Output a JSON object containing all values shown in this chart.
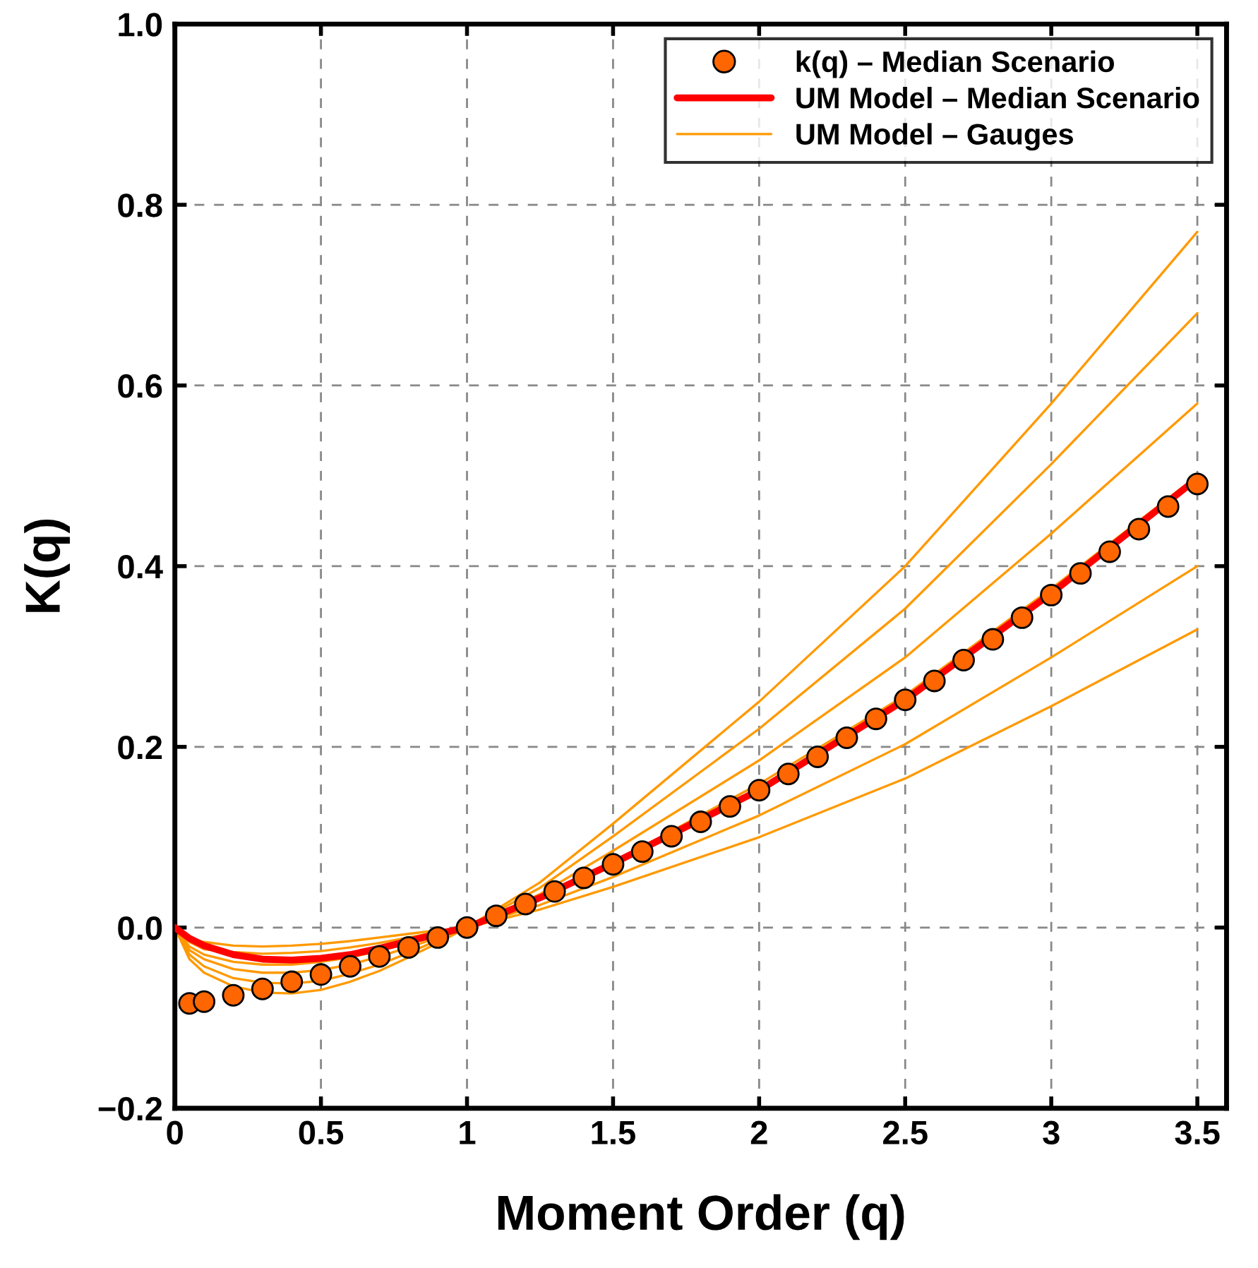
{
  "chart_data": {
    "type": "line",
    "xlabel": "Moment Order (q)",
    "ylabel": "K(q)",
    "xlim": [
      0,
      3.6
    ],
    "ylim": [
      -0.2,
      1.0
    ],
    "xticks": [
      0,
      0.5,
      1,
      1.5,
      2,
      2.5,
      3,
      3.5
    ],
    "yticks": [
      {
        "value": -0.2,
        "label": "−0.2"
      },
      {
        "value": 0,
        "label": "0.0"
      },
      {
        "value": 0.2,
        "label": "0.2"
      },
      {
        "value": 0.4,
        "label": "0.4"
      },
      {
        "value": 0.6,
        "label": "0.6"
      },
      {
        "value": 0.8,
        "label": "0.8"
      },
      {
        "value": 1.0,
        "label": "1.0"
      }
    ],
    "grid": true,
    "legend": "top right",
    "series": [
      {
        "name": "UM Model – Gauges",
        "color": "#ff9900",
        "x": [
          0,
          0.05,
          0.1,
          0.2,
          0.3,
          0.4,
          0.5,
          0.6,
          0.7,
          0.8,
          0.9,
          1,
          1.25,
          1.5,
          2,
          2.5,
          3,
          3.5
        ],
        "values": [
          0,
          -0.012,
          -0.016,
          -0.02,
          -0.021,
          -0.02,
          -0.018,
          -0.015,
          -0.011,
          -0.007,
          -0.003,
          0,
          0.02,
          0.045,
          0.1,
          0.165,
          0.245,
          0.33
        ]
      },
      {
        "type": "line",
        "color": "#ff9900",
        "x": [
          0,
          0.05,
          0.1,
          0.2,
          0.3,
          0.4,
          0.5,
          0.6,
          0.7,
          0.8,
          0.9,
          1,
          1.25,
          1.5,
          2,
          2.5,
          3,
          3.5
        ],
        "values": [
          0,
          -0.016,
          -0.024,
          -0.027,
          -0.029,
          -0.028,
          -0.026,
          -0.022,
          -0.017,
          -0.011,
          -0.005,
          0,
          0.025,
          0.056,
          0.124,
          0.203,
          0.299,
          0.4
        ]
      },
      {
        "type": "line",
        "color": "#ff9900",
        "x": [
          0,
          0.05,
          0.1,
          0.2,
          0.3,
          0.4,
          0.5,
          0.6,
          0.7,
          0.8,
          0.9,
          1,
          1.25,
          1.5,
          2,
          2.5,
          3,
          3.5
        ],
        "values": [
          0,
          -0.021,
          -0.03,
          -0.038,
          -0.041,
          -0.041,
          -0.038,
          -0.033,
          -0.026,
          -0.017,
          -0.008,
          0,
          0.032,
          0.072,
          0.159,
          0.257,
          0.375,
          0.5
        ]
      },
      {
        "type": "line",
        "color": "#ff9900",
        "x": [
          0,
          0.05,
          0.1,
          0.2,
          0.3,
          0.4,
          0.5,
          0.6,
          0.7,
          0.8,
          0.9,
          1,
          1.25,
          1.5,
          2,
          2.5,
          3,
          3.5
        ],
        "values": [
          0,
          -0.025,
          -0.035,
          -0.046,
          -0.05,
          -0.05,
          -0.047,
          -0.041,
          -0.032,
          -0.022,
          -0.011,
          0,
          0.037,
          0.085,
          0.185,
          0.299,
          0.436,
          0.58
        ]
      },
      {
        "type": "line",
        "color": "#ff9900",
        "x": [
          0,
          0.05,
          0.1,
          0.2,
          0.3,
          0.4,
          0.5,
          0.6,
          0.7,
          0.8,
          0.9,
          1,
          1.25,
          1.5,
          2,
          2.5,
          3,
          3.5
        ],
        "values": [
          0,
          -0.03,
          -0.043,
          -0.056,
          -0.061,
          -0.062,
          -0.059,
          -0.051,
          -0.041,
          -0.028,
          -0.014,
          0,
          0.044,
          0.101,
          0.22,
          0.353,
          0.513,
          0.68
        ]
      },
      {
        "type": "line",
        "color": "#ff9900",
        "x": [
          0,
          0.05,
          0.1,
          0.2,
          0.3,
          0.4,
          0.5,
          0.6,
          0.7,
          0.8,
          0.9,
          1,
          1.25,
          1.5,
          2,
          2.5,
          3,
          3.5
        ],
        "values": [
          0,
          -0.035,
          -0.05,
          -0.065,
          -0.072,
          -0.073,
          -0.069,
          -0.06,
          -0.048,
          -0.033,
          -0.017,
          0,
          0.05,
          0.115,
          0.25,
          0.4,
          0.58,
          0.77
        ]
      },
      {
        "name": "UM Model – Median Scenario",
        "color": "#ff0000",
        "x": [
          0,
          0.05,
          0.1,
          0.2,
          0.3,
          0.4,
          0.5,
          0.6,
          0.7,
          0.8,
          0.9,
          1,
          1.25,
          1.5,
          2,
          2.5,
          3,
          3.5
        ],
        "values": [
          0,
          -0.012,
          -0.02,
          -0.03,
          -0.035,
          -0.036,
          -0.034,
          -0.03,
          -0.023,
          -0.015,
          -0.007,
          0,
          0.033,
          0.071,
          0.152,
          0.252,
          0.37,
          0.497
        ]
      },
      {
        "name": "k(q) – Median Scenario",
        "type": "scatter",
        "marker": "circle",
        "color": "#ff6600",
        "x": [
          0.05,
          0.1,
          0.2,
          0.3,
          0.4,
          0.5,
          0.6,
          0.7,
          0.8,
          0.9,
          1.0,
          1.1,
          1.2,
          1.3,
          1.4,
          1.5,
          1.6,
          1.7,
          1.8,
          1.9,
          2.0,
          2.1,
          2.2,
          2.3,
          2.4,
          2.5,
          2.6,
          2.7,
          2.8,
          2.9,
          3.0,
          3.1,
          3.2,
          3.3,
          3.4,
          3.5
        ],
        "values": [
          -0.084,
          -0.082,
          -0.075,
          -0.068,
          -0.06,
          -0.052,
          -0.043,
          -0.032,
          -0.022,
          -0.011,
          0,
          0.013,
          0.026,
          0.04,
          0.055,
          0.07,
          0.084,
          0.101,
          0.117,
          0.134,
          0.152,
          0.17,
          0.189,
          0.21,
          0.231,
          0.252,
          0.273,
          0.296,
          0.319,
          0.343,
          0.368,
          0.392,
          0.416,
          0.441,
          0.466,
          0.491
        ]
      }
    ]
  }
}
